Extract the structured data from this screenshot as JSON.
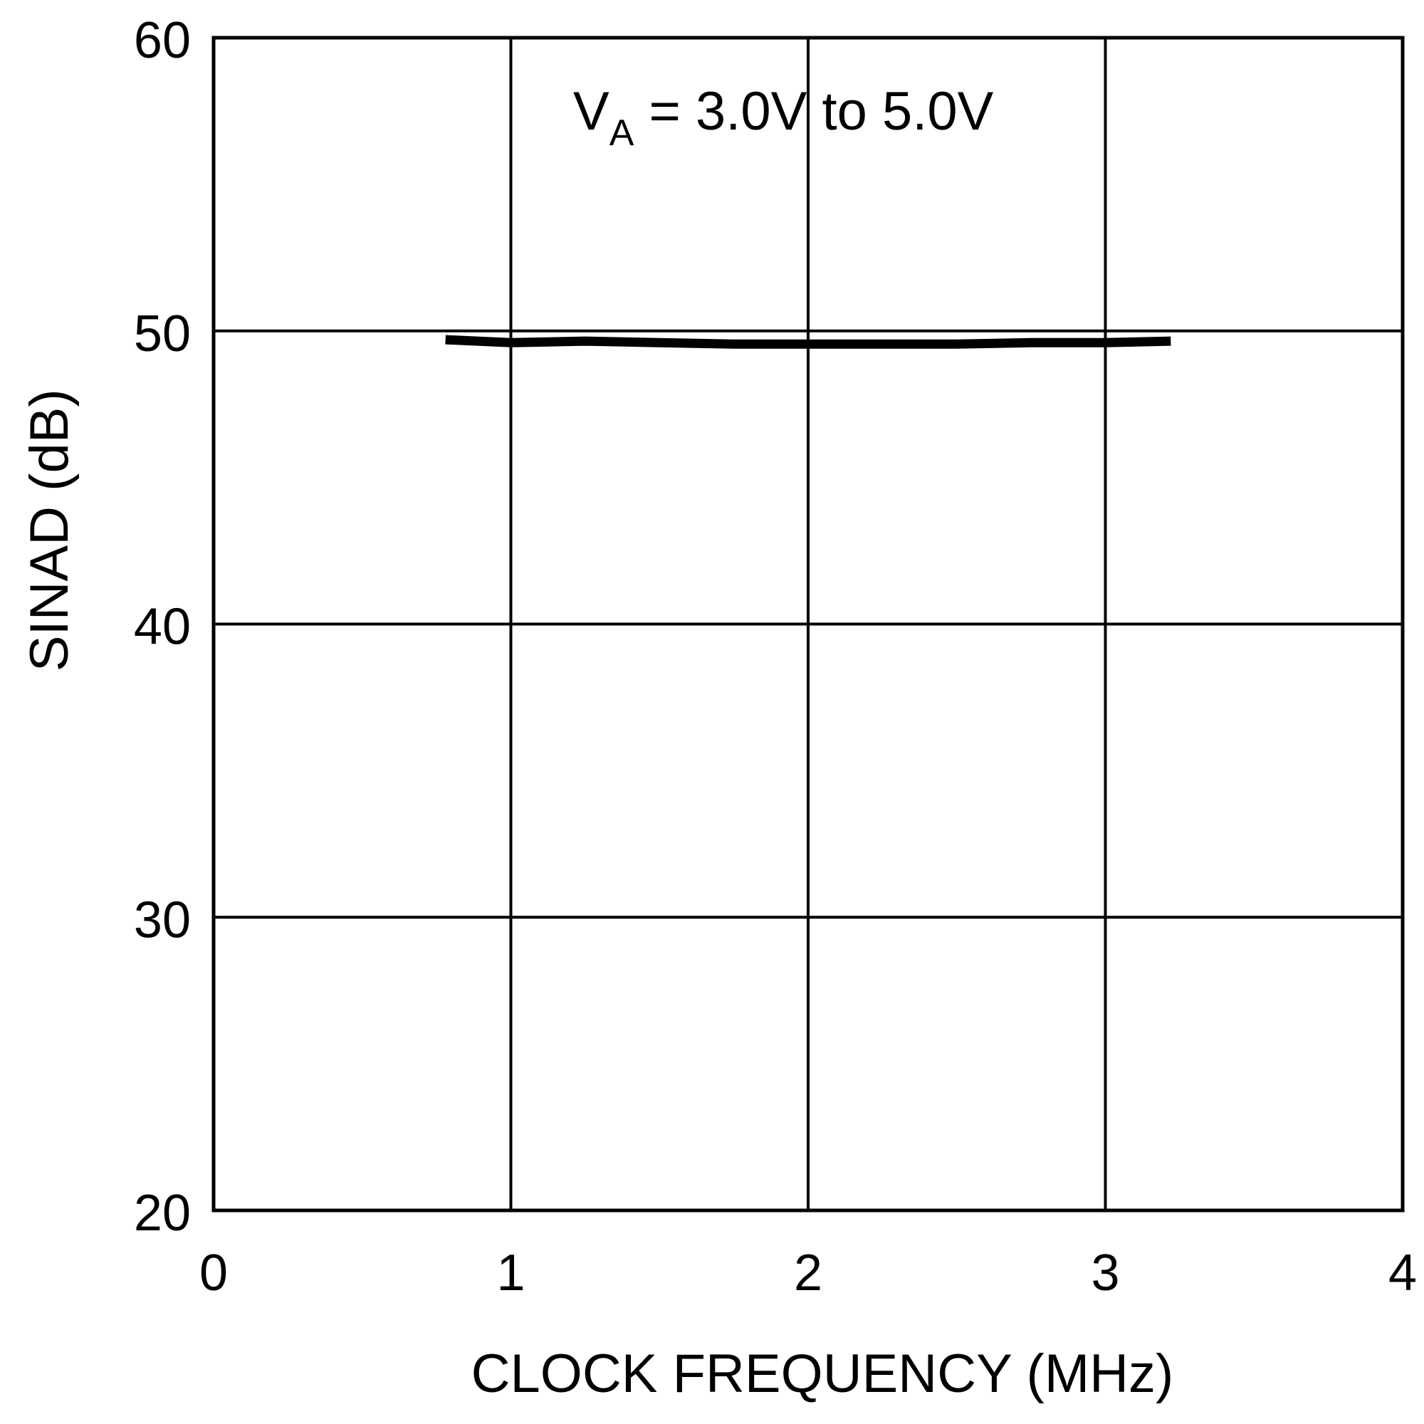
{
  "chart_data": {
    "type": "line",
    "title": "",
    "xlabel": "CLOCK FREQUENCY (MHz)",
    "ylabel": "SINAD (dB)",
    "xlim": [
      0,
      4
    ],
    "ylim": [
      20,
      60
    ],
    "xticks": [
      0,
      1,
      2,
      3,
      4
    ],
    "yticks": [
      20,
      30,
      40,
      50,
      60
    ],
    "grid": true,
    "annotation": {
      "main": "V",
      "subscript": "A",
      "rest": " = 3.0V to 5.0V"
    },
    "series": [
      {
        "x": [
          0.78,
          1.0,
          1.25,
          1.5,
          1.75,
          2.0,
          2.25,
          2.5,
          2.75,
          3.0,
          3.22
        ],
        "y": [
          49.7,
          49.6,
          49.65,
          49.6,
          49.55,
          49.55,
          49.55,
          49.55,
          49.6,
          49.6,
          49.65
        ]
      }
    ]
  },
  "colors": {
    "line": "#000000",
    "grid": "#000000",
    "background": "#ffffff"
  }
}
